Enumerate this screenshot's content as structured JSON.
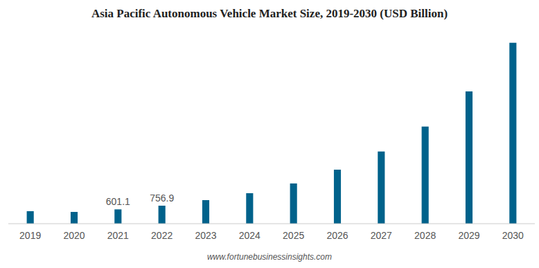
{
  "chart_data": {
    "type": "bar",
    "title": "Asia Pacific Autonomous Vehicle Market Size, 2019-2030 (USD Billion)",
    "subtitle": "www.fortunebusinessinsights.com",
    "categories": [
      "2019",
      "2020",
      "2021",
      "2022",
      "2023",
      "2024",
      "2025",
      "2026",
      "2027",
      "2028",
      "2029",
      "2030"
    ],
    "values": [
      525,
      495,
      601.1,
      756.9,
      990,
      1280,
      1690,
      2270,
      3030,
      4080,
      5560,
      7600
    ],
    "value_labels": [
      null,
      null,
      "601.1",
      "756.9",
      null,
      null,
      null,
      null,
      null,
      null,
      null,
      null
    ],
    "color": "#00628b",
    "ylim": [
      0,
      8000
    ],
    "grid": false,
    "tick_labels": "x"
  }
}
